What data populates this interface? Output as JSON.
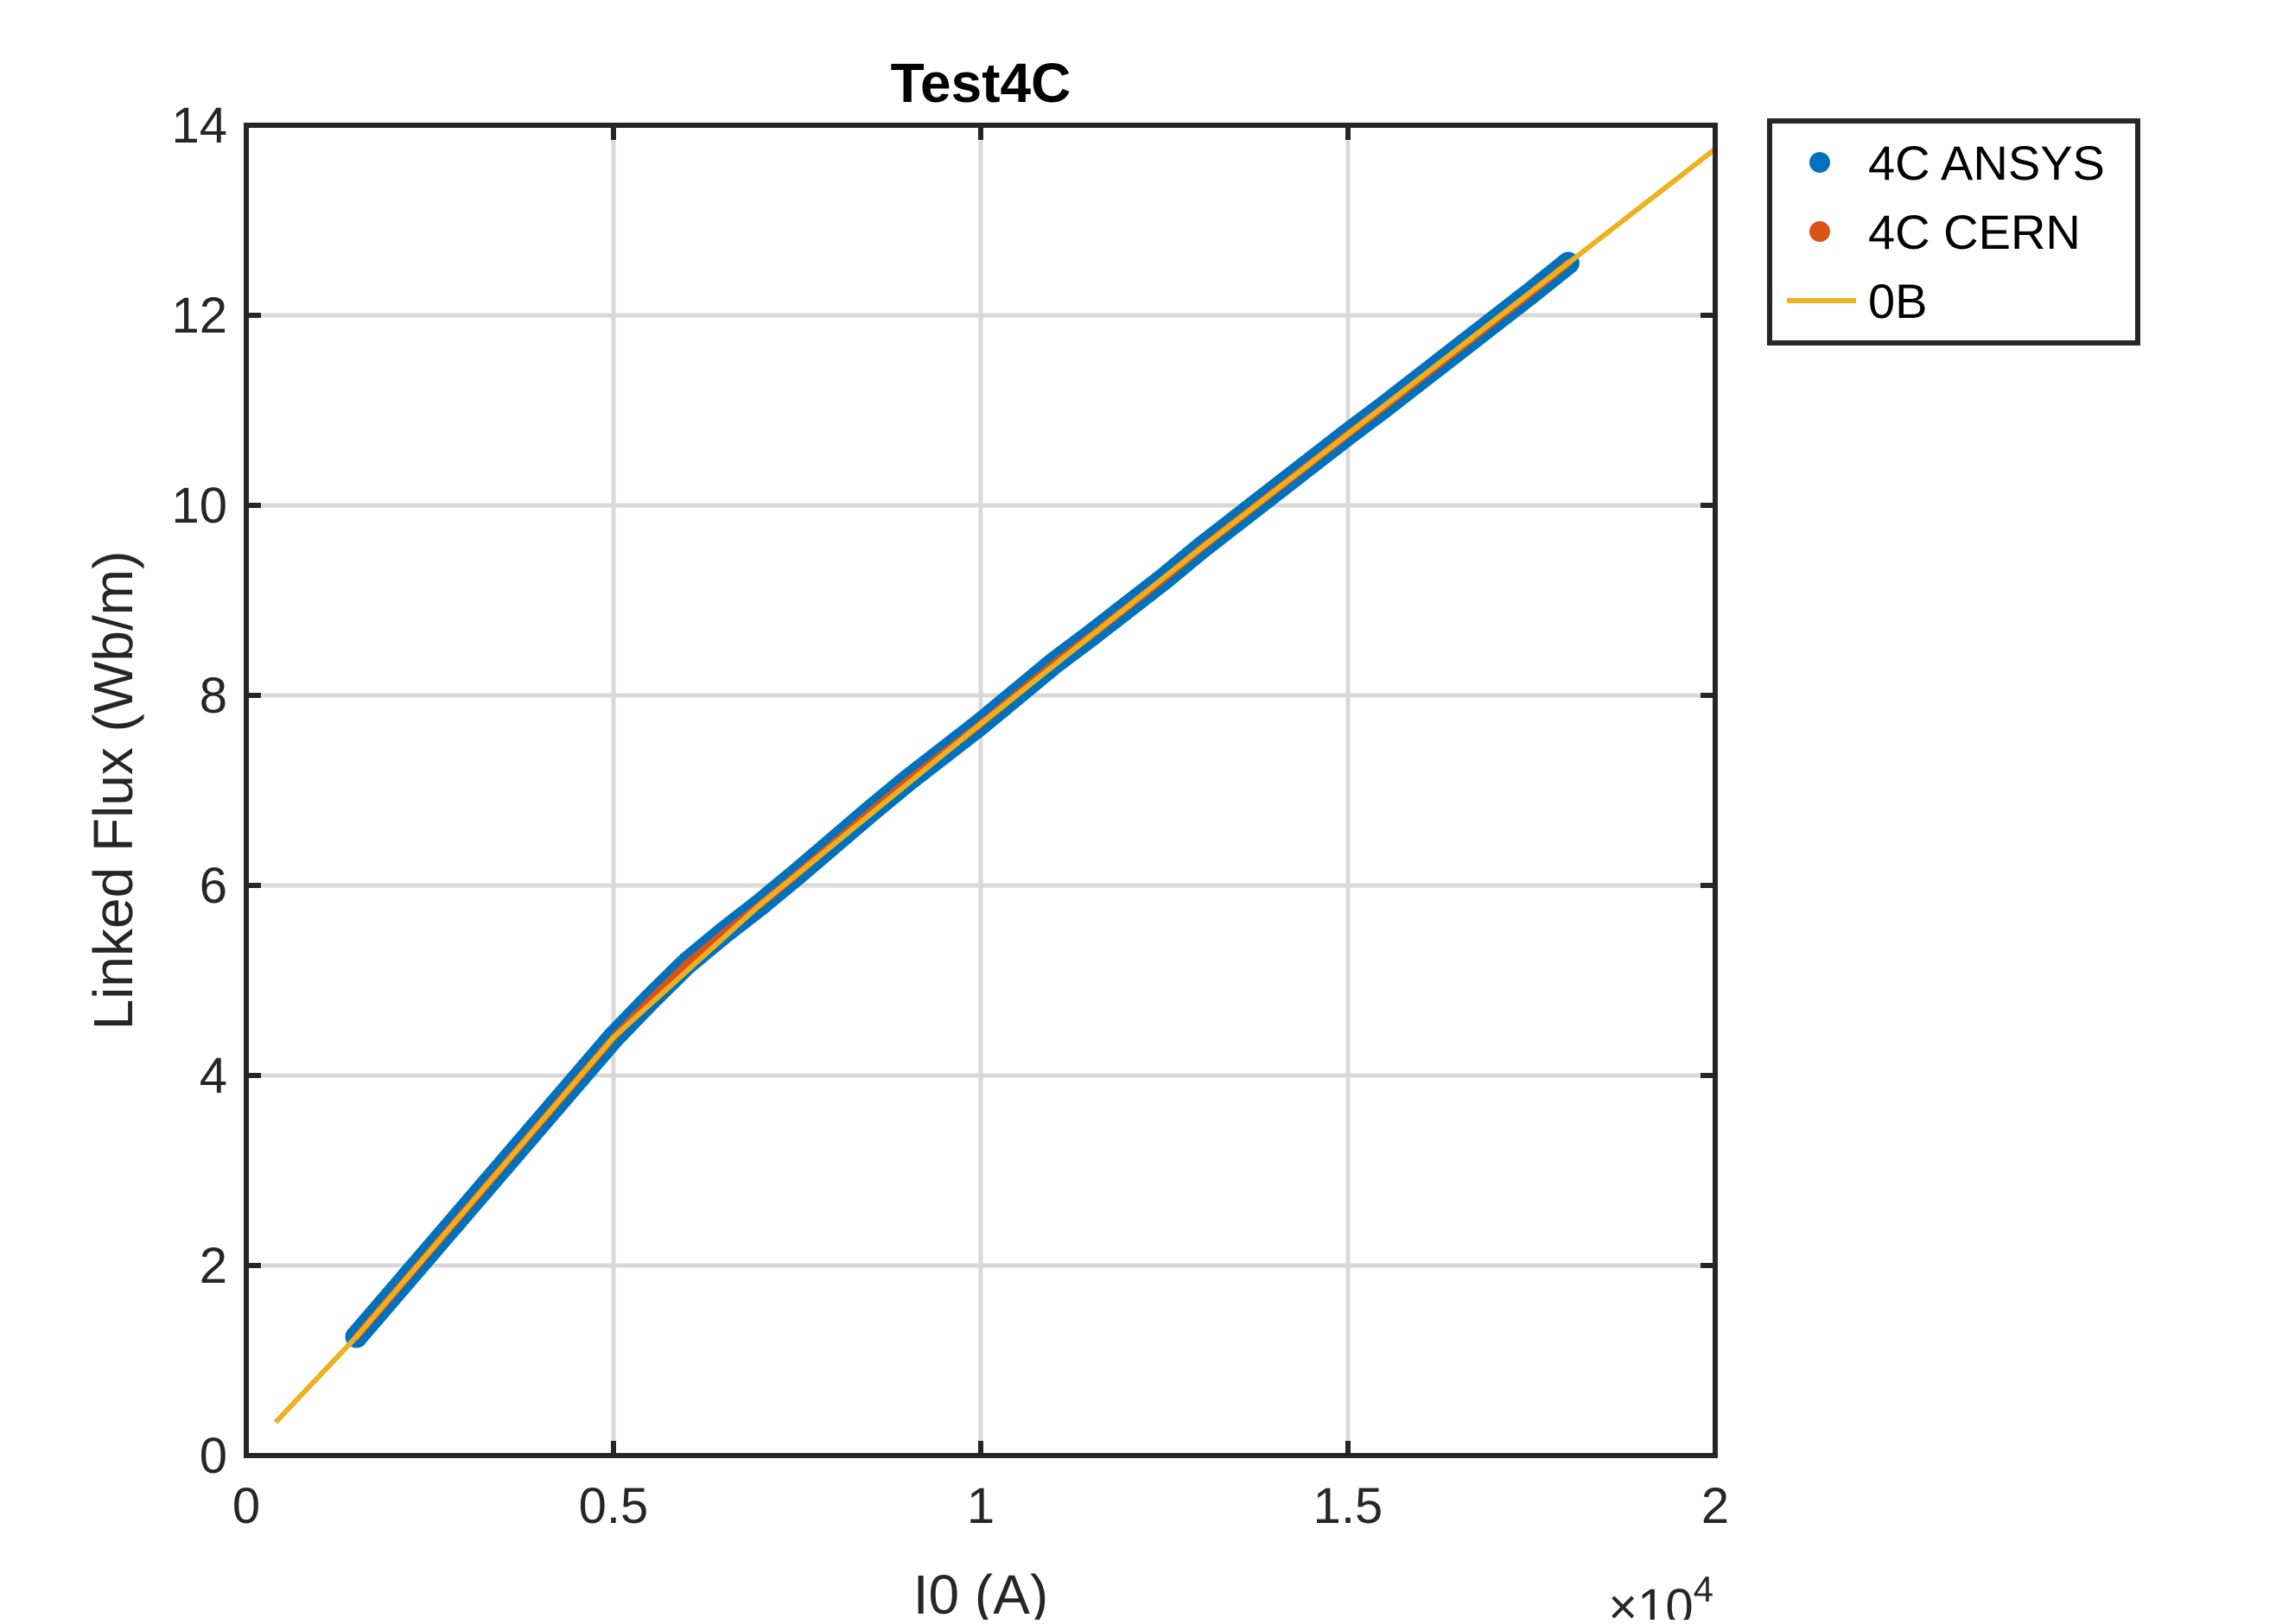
{
  "chart_data": {
    "type": "scatter",
    "title": "Test4C",
    "xlabel": "I0 (A)",
    "ylabel": "Linked Flux (Wb/m)",
    "x_multiplier_label": "×10",
    "x_multiplier_exponent": "4",
    "xlim": [
      0,
      20000
    ],
    "ylim": [
      0,
      14
    ],
    "xticks": [
      0,
      5000,
      10000,
      15000,
      20000
    ],
    "xtick_labels": [
      "0",
      "0.5",
      "1",
      "1.5",
      "2"
    ],
    "yticks": [
      0,
      2,
      4,
      6,
      8,
      10,
      12,
      14
    ],
    "ytick_labels": [
      "0",
      "2",
      "4",
      "6",
      "8",
      "10",
      "12",
      "14"
    ],
    "grid": true,
    "legend_position": "outside-top-right",
    "series": [
      {
        "name": "4C ANSYS",
        "style": "markers",
        "color": "#0072BD",
        "x": [
          1500,
          2000,
          2500,
          3000,
          3500,
          4000,
          4500,
          5000,
          5500,
          6000,
          6500,
          7000,
          7500,
          8000,
          8500,
          9000,
          9500,
          10000,
          10500,
          11000,
          11500,
          12000,
          12500,
          13000,
          13500,
          14000,
          14500,
          15000,
          15500,
          16000,
          16500,
          17000,
          17500,
          18000
        ],
        "y": [
          1.25,
          1.7,
          2.15,
          2.6,
          3.05,
          3.5,
          3.95,
          4.4,
          4.8,
          5.18,
          5.5,
          5.8,
          6.12,
          6.45,
          6.78,
          7.1,
          7.4,
          7.7,
          8.02,
          8.34,
          8.63,
          8.93,
          9.23,
          9.55,
          9.85,
          10.15,
          10.45,
          10.75,
          11.04,
          11.34,
          11.64,
          11.94,
          12.24,
          12.55
        ]
      },
      {
        "name": "4C CERN",
        "style": "markers",
        "color": "#D95319",
        "x": [
          1500,
          2000,
          2500,
          3000,
          3500,
          4000,
          4500,
          5000,
          5500,
          6000,
          6500,
          7000,
          7500,
          8000,
          8500,
          9000,
          9500,
          10000,
          10500,
          11000,
          11500,
          12000,
          12500,
          13000,
          13500,
          14000,
          14500,
          15000,
          15500,
          16000,
          16500,
          17000,
          17500,
          18000
        ],
        "y": [
          1.25,
          1.7,
          2.15,
          2.6,
          3.05,
          3.5,
          3.95,
          4.4,
          4.8,
          5.18,
          5.5,
          5.8,
          6.12,
          6.45,
          6.78,
          7.1,
          7.4,
          7.7,
          8.02,
          8.34,
          8.63,
          8.93,
          9.23,
          9.55,
          9.85,
          10.15,
          10.45,
          10.75,
          11.04,
          11.34,
          11.64,
          11.94,
          12.24,
          12.55
        ]
      },
      {
        "name": "0B",
        "style": "line",
        "color": "#EDB120",
        "x": [
          400,
          1500,
          3000,
          5000,
          7000,
          10000,
          13000,
          15000,
          18000,
          20000
        ],
        "y": [
          0.35,
          1.25,
          2.6,
          4.4,
          5.8,
          7.7,
          9.55,
          10.75,
          12.55,
          13.75
        ]
      }
    ]
  }
}
